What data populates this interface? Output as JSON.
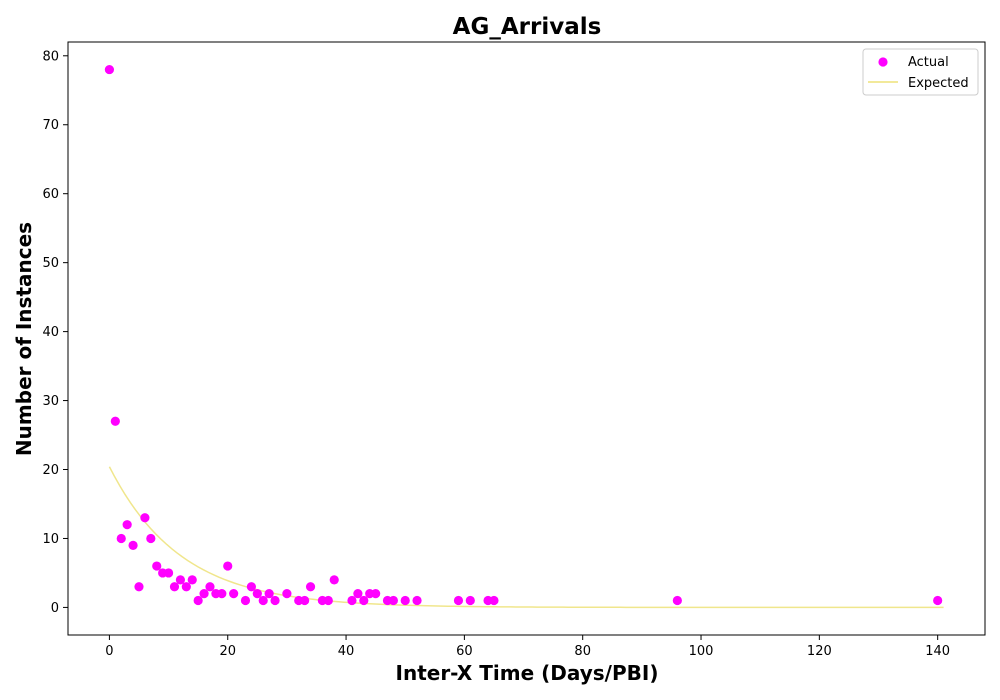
{
  "chart_data": {
    "type": "scatter",
    "title": "AG_Arrivals",
    "xlabel": "Inter-X Time (Days/PBI)",
    "ylabel": "Number of Instances",
    "xlim": [
      -7,
      148
    ],
    "ylim": [
      -4,
      82
    ],
    "xticks": [
      0,
      20,
      40,
      60,
      80,
      100,
      120,
      140
    ],
    "yticks": [
      0,
      10,
      20,
      30,
      40,
      50,
      60,
      70,
      80
    ],
    "grid": false,
    "legend_position": "top-right",
    "series": [
      {
        "name": "Actual",
        "kind": "scatter",
        "color": "#ff00ff",
        "points": [
          [
            0,
            78
          ],
          [
            1,
            27
          ],
          [
            2,
            10
          ],
          [
            3,
            12
          ],
          [
            4,
            9
          ],
          [
            5,
            3
          ],
          [
            6,
            13
          ],
          [
            7,
            10
          ],
          [
            8,
            6
          ],
          [
            9,
            5
          ],
          [
            10,
            5
          ],
          [
            11,
            3
          ],
          [
            12,
            4
          ],
          [
            13,
            3
          ],
          [
            14,
            4
          ],
          [
            15,
            1
          ],
          [
            16,
            2
          ],
          [
            17,
            3
          ],
          [
            18,
            2
          ],
          [
            19,
            2
          ],
          [
            20,
            6
          ],
          [
            21,
            2
          ],
          [
            23,
            1
          ],
          [
            24,
            3
          ],
          [
            25,
            2
          ],
          [
            26,
            1
          ],
          [
            27,
            2
          ],
          [
            28,
            1
          ],
          [
            30,
            2
          ],
          [
            32,
            1
          ],
          [
            33,
            1
          ],
          [
            34,
            3
          ],
          [
            36,
            1
          ],
          [
            37,
            1
          ],
          [
            38,
            4
          ],
          [
            41,
            1
          ],
          [
            42,
            2
          ],
          [
            43,
            1
          ],
          [
            44,
            2
          ],
          [
            45,
            2
          ],
          [
            47,
            1
          ],
          [
            48,
            1
          ],
          [
            50,
            1
          ],
          [
            52,
            1
          ],
          [
            59,
            1
          ],
          [
            61,
            1
          ],
          [
            64,
            1
          ],
          [
            65,
            1
          ],
          [
            96,
            1
          ],
          [
            140,
            1
          ]
        ]
      },
      {
        "name": "Expected",
        "kind": "line",
        "color": "#f0e68c",
        "function": "exponential",
        "a": 20.4,
        "rate": 0.083,
        "x_range": [
          0,
          141
        ]
      }
    ]
  }
}
